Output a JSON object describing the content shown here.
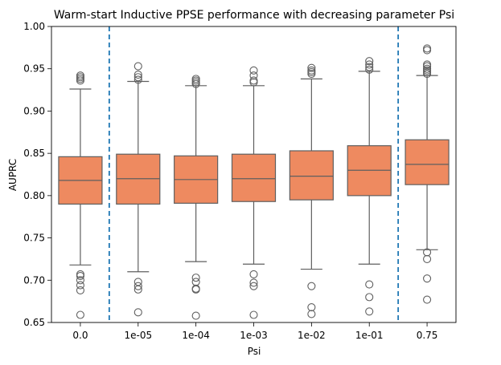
{
  "chart_data": {
    "type": "box",
    "title": "Warm-start Inductive PPSE performance with decreasing parameter Psi",
    "xlabel": "Psi",
    "ylabel": "AUPRC",
    "ylim": [
      0.65,
      1.0
    ],
    "yticks": [
      "0.65",
      "0.70",
      "0.75",
      "0.80",
      "0.85",
      "0.90",
      "0.95",
      "1.00"
    ],
    "categories": [
      "0.0",
      "1e-05",
      "1e-04",
      "1e-03",
      "1e-02",
      "1e-01",
      "0.75"
    ],
    "box_color": "#ee8a60",
    "line_color": "#5f5f5f",
    "vline_color": "#1f77b4",
    "vlines_between": [
      [
        0,
        1
      ],
      [
        5,
        6
      ]
    ],
    "boxes": [
      {
        "q1": 0.79,
        "median": 0.818,
        "q3": 0.846,
        "whisker_low": 0.718,
        "whisker_high": 0.926,
        "outliers": [
          0.936,
          0.938,
          0.94,
          0.942,
          0.707,
          0.705,
          0.7,
          0.694,
          0.688,
          0.659
        ]
      },
      {
        "q1": 0.79,
        "median": 0.82,
        "q3": 0.849,
        "whisker_low": 0.71,
        "whisker_high": 0.935,
        "outliers": [
          0.937,
          0.94,
          0.943,
          0.953,
          0.698,
          0.693,
          0.689,
          0.662
        ]
      },
      {
        "q1": 0.791,
        "median": 0.819,
        "q3": 0.847,
        "whisker_low": 0.722,
        "whisker_high": 0.93,
        "outliers": [
          0.932,
          0.934,
          0.936,
          0.938,
          0.703,
          0.698,
          0.69,
          0.689,
          0.658
        ]
      },
      {
        "q1": 0.793,
        "median": 0.82,
        "q3": 0.849,
        "whisker_low": 0.719,
        "whisker_high": 0.93,
        "outliers": [
          0.934,
          0.936,
          0.942,
          0.948,
          0.707,
          0.697,
          0.693,
          0.659
        ]
      },
      {
        "q1": 0.795,
        "median": 0.823,
        "q3": 0.853,
        "whisker_low": 0.713,
        "whisker_high": 0.938,
        "outliers": [
          0.944,
          0.946,
          0.948,
          0.951,
          0.693,
          0.668,
          0.66
        ]
      },
      {
        "q1": 0.8,
        "median": 0.83,
        "q3": 0.859,
        "whisker_low": 0.719,
        "whisker_high": 0.947,
        "outliers": [
          0.949,
          0.952,
          0.955,
          0.959,
          0.695,
          0.68,
          0.663
        ]
      },
      {
        "q1": 0.813,
        "median": 0.837,
        "q3": 0.866,
        "whisker_low": 0.736,
        "whisker_high": 0.942,
        "outliers": [
          0.944,
          0.946,
          0.948,
          0.95,
          0.953,
          0.955,
          0.972,
          0.974,
          0.733,
          0.725,
          0.702,
          0.677
        ]
      }
    ]
  }
}
